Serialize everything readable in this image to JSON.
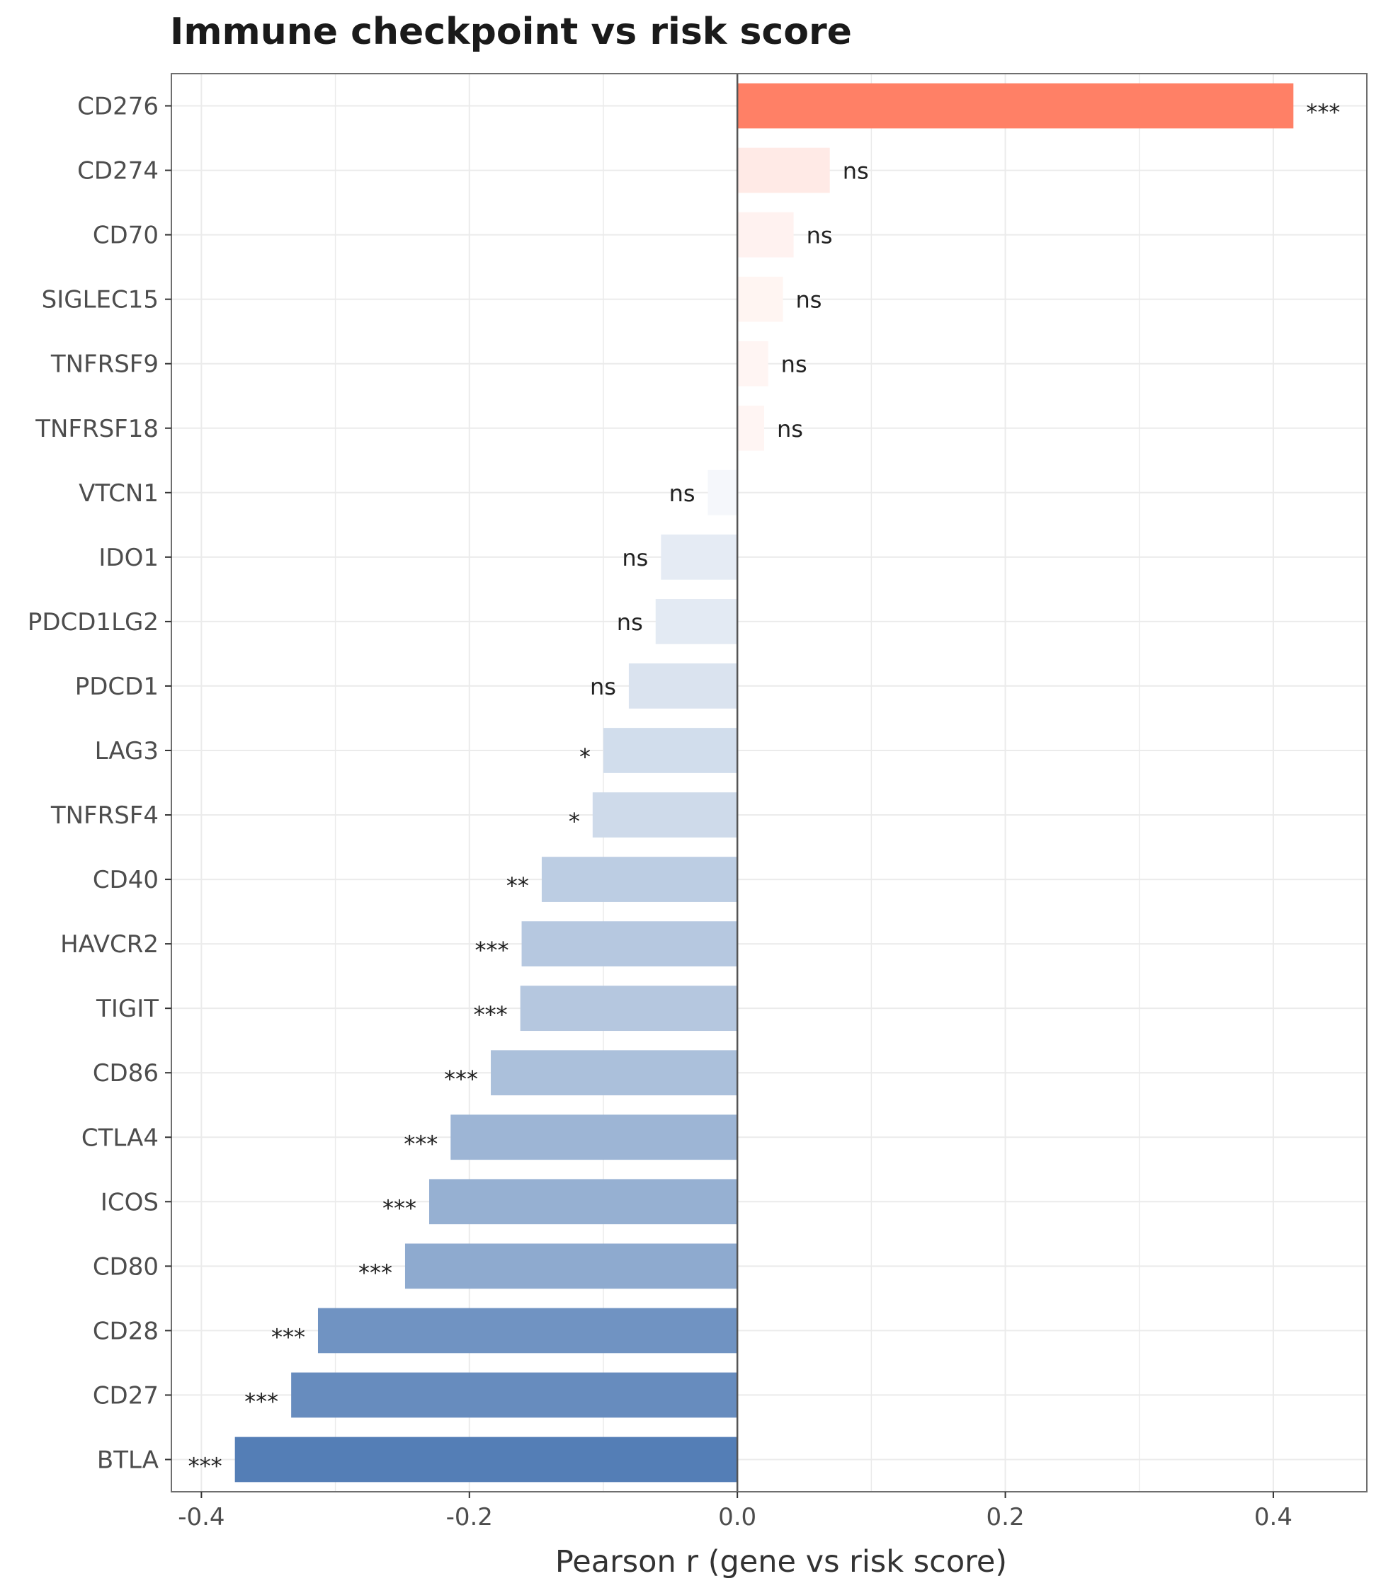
{
  "chart_data": {
    "type": "bar",
    "orientation": "horizontal",
    "title": "Immune checkpoint vs risk score",
    "xlabel": "Pearson r (gene vs risk score)",
    "ylabel": "",
    "xlim": [
      -0.4224,
      0.4698
    ],
    "xticks": [
      -0.4,
      -0.2,
      0.0,
      0.2,
      0.4
    ],
    "xtick_labels": [
      "-0.4",
      "-0.2",
      "0.0",
      "0.2",
      "0.4"
    ],
    "grid": true,
    "legend": "none",
    "categories": [
      "CD276",
      "CD274",
      "CD70",
      "SIGLEC15",
      "TNFRSF9",
      "TNFRSF18",
      "VTCN1",
      "IDO1",
      "PDCD1LG2",
      "PDCD1",
      "LAG3",
      "TNFRSF4",
      "CD40",
      "HAVCR2",
      "TIGIT",
      "CD86",
      "CTLA4",
      "ICOS",
      "CD80",
      "CD28",
      "CD27",
      "BTLA"
    ],
    "values": [
      0.415,
      0.069,
      0.042,
      0.034,
      0.023,
      0.02,
      -0.022,
      -0.057,
      -0.061,
      -0.081,
      -0.1,
      -0.108,
      -0.146,
      -0.161,
      -0.162,
      -0.184,
      -0.214,
      -0.23,
      -0.248,
      -0.313,
      -0.333,
      -0.375
    ],
    "significance": [
      "***",
      "ns",
      "ns",
      "ns",
      "ns",
      "ns",
      "ns",
      "ns",
      "ns",
      "ns",
      "*",
      "*",
      "**",
      "***",
      "***",
      "***",
      "***",
      "***",
      "***",
      "***",
      "***",
      "***"
    ],
    "colors": {
      "positive_max": "#FF8066",
      "positive_min": "#FFFFFF",
      "negative_max": "#547EB6",
      "negative_min": "#FFFFFF",
      "zero_line": "#555555",
      "grid": "#EBEBEB",
      "panel_border": "#6E6E6E"
    }
  }
}
